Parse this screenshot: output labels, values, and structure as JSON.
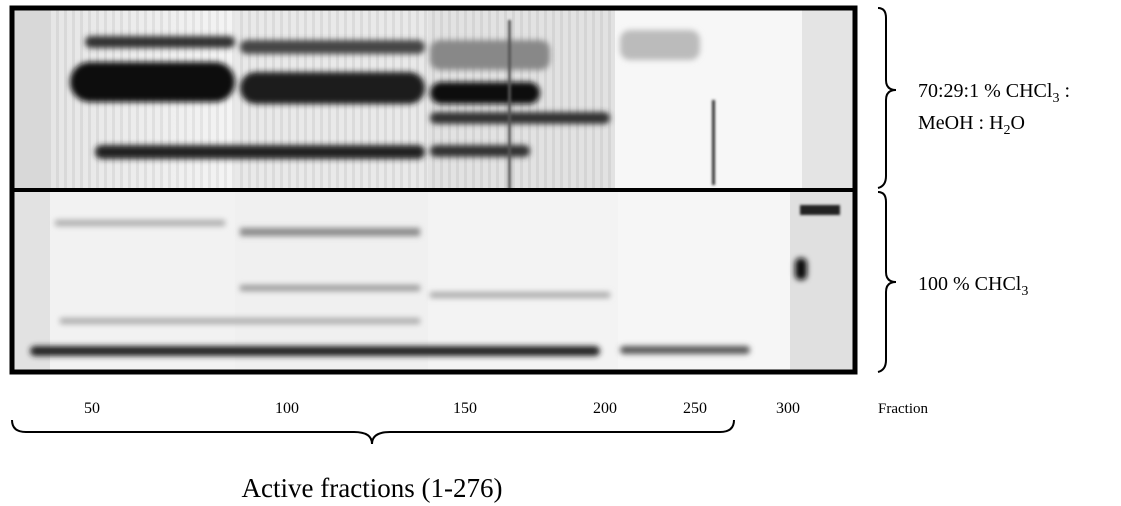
{
  "figure": {
    "solvents": {
      "top": {
        "line1": {
          "text": "70:29:1 % CHCl",
          "sub": "3",
          "tail": " :"
        },
        "line2": {
          "text": "MeOH : H",
          "sub": "2",
          "tail": "O"
        }
      },
      "bottom": {
        "text": "100 % CHCl",
        "sub": "3"
      }
    },
    "fraction_labels": [
      "50",
      "100",
      "150",
      "200",
      "250",
      "300"
    ],
    "fraction_axis_title": "Fraction",
    "active_range_label": "Active fractions (1-276)"
  }
}
